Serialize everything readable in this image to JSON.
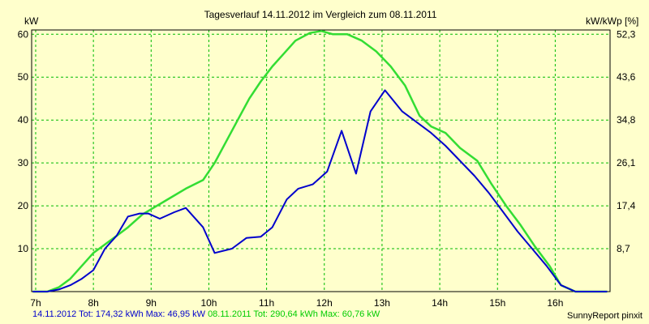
{
  "chart_data": {
    "type": "line",
    "title": "Tagesverlauf 14.11.2012 im Vergleich zum 08.11.2011",
    "ylabel": "kW",
    "ylabel_right": "kW/kWp [%]",
    "ylim": [
      0,
      61
    ],
    "xlim": [
      6.93,
      16.95
    ],
    "grid": true,
    "x_ticks": [
      7,
      8,
      9,
      10,
      11,
      12,
      13,
      14,
      15,
      16
    ],
    "x_tick_labels": [
      "7h",
      "8h",
      "9h",
      "10h",
      "11h",
      "12h",
      "13h",
      "14h",
      "15h",
      "16h"
    ],
    "y_ticks": [
      10,
      20,
      30,
      40,
      50,
      60
    ],
    "y_tick_labels": [
      "10",
      "20",
      "30",
      "40",
      "50",
      "60"
    ],
    "y_right_ticks": [
      10,
      20,
      30,
      40,
      50,
      60
    ],
    "y_right_tick_labels": [
      "8,7",
      "17,4",
      "26,1",
      "34,8",
      "43,6",
      "52,3"
    ],
    "series": [
      {
        "name": "14.11.2012",
        "color": "#0000cc",
        "summary": "14.11.2012 Tot: 174,32 kWh Max: 46,95 kW",
        "x": [
          6.95,
          7.2,
          7.4,
          7.6,
          7.8,
          8.0,
          8.2,
          8.4,
          8.6,
          8.8,
          8.95,
          9.15,
          9.4,
          9.6,
          9.9,
          10.1,
          10.4,
          10.65,
          10.9,
          11.1,
          11.35,
          11.55,
          11.8,
          12.05,
          12.3,
          12.55,
          12.8,
          13.05,
          13.35,
          13.6,
          13.85,
          14.1,
          14.35,
          14.6,
          14.85,
          15.1,
          15.35,
          15.6,
          15.85,
          16.1,
          16.35,
          16.6,
          16.9
        ],
        "y": [
          0,
          0,
          0.5,
          1.5,
          3,
          5,
          10,
          13,
          17.5,
          18.2,
          18.2,
          17,
          18.5,
          19.5,
          15,
          9,
          10,
          12.5,
          12.8,
          15,
          21.5,
          24,
          25,
          28,
          37.5,
          27.5,
          42,
          46.95,
          42,
          39.5,
          37,
          34,
          30.5,
          27,
          23,
          18.5,
          14,
          10,
          6,
          1.5,
          0,
          0,
          0
        ]
      },
      {
        "name": "08.11.2011",
        "color": "#33dd33",
        "summary": "08.11.2011 Tot: 290,64 kWh Max: 60,76 kW",
        "x": [
          6.95,
          7.2,
          7.4,
          7.6,
          7.8,
          8.0,
          8.2,
          8.4,
          8.6,
          8.85,
          9.1,
          9.35,
          9.6,
          9.9,
          10.1,
          10.3,
          10.5,
          10.7,
          10.9,
          11.1,
          11.3,
          11.5,
          11.75,
          11.95,
          12.15,
          12.4,
          12.65,
          12.9,
          13.15,
          13.4,
          13.65,
          13.85,
          14.1,
          14.35,
          14.65,
          14.9,
          15.15,
          15.4,
          15.65,
          15.9,
          16.1,
          16.35,
          16.6,
          16.9
        ],
        "y": [
          0,
          0,
          1,
          3,
          6,
          9,
          11,
          13,
          15,
          18,
          20,
          22,
          24,
          26,
          30,
          35,
          40,
          45,
          49,
          52.5,
          55.5,
          58.5,
          60.3,
          60.76,
          60,
          60,
          58.5,
          56,
          52.5,
          48,
          41,
          38.5,
          37,
          33.5,
          30.5,
          25,
          20,
          15.5,
          10.5,
          6,
          1.5,
          0,
          0,
          0
        ]
      }
    ],
    "credit": "SunnyReport pinxit"
  }
}
